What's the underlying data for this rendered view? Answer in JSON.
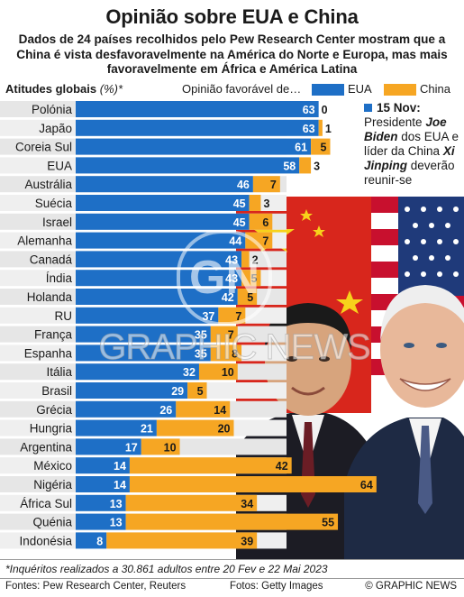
{
  "header": {
    "title": "Opinião sobre EUA e China",
    "subtitle": "Dados de 24 países recolhidos pelo Pew Research Center mostram que a China é vista desfavoravelmente na América do Norte e Europa, mas mais favoravelmente em África e América Latina"
  },
  "legend": {
    "left_label": "Atitudes globais",
    "left_unit": "(%)*",
    "mid_label": "Opinião favorável de…",
    "series_us": "EUA",
    "series_china": "China"
  },
  "annotation": {
    "date": "15 Nov:",
    "text_a": "Presidente",
    "name_a": "Joe Biden",
    "text_b": "dos EUA e líder da China",
    "name_b": "Xi Jinping",
    "text_c": "deverão reunir-se"
  },
  "watermark": {
    "logo": "GN",
    "text": "GRAPHIC NEWS"
  },
  "footer": {
    "footnote": "*Inquéritos realizados a 30.861 adultos entre 20 Fev e 22 Mai 2023",
    "sources": "Fontes: Pew Research Center, Reuters",
    "photos": "Fotos: Getty Images",
    "credit": "© GRAPHIC NEWS"
  },
  "colors": {
    "us": "#1e6fc6",
    "china": "#f6a623",
    "row_bg": "#e6e6e6"
  },
  "chart_data": {
    "type": "bar",
    "orientation": "horizontal-stacked",
    "categories": [
      "Polónia",
      "Japão",
      "Coreia Sul",
      "EUA",
      "Austrália",
      "Suécia",
      "Israel",
      "Alemanha",
      "Canadá",
      "Índia",
      "Holanda",
      "RU",
      "França",
      "Espanha",
      "Itália",
      "Brasil",
      "Grécia",
      "Hungria",
      "Argentina",
      "México",
      "Nigéria",
      "África Sul",
      "Quénia",
      "Indonésia"
    ],
    "series": [
      {
        "name": "EUA",
        "values": [
          63,
          63,
          61,
          58,
          46,
          45,
          45,
          44,
          43,
          43,
          42,
          37,
          35,
          35,
          32,
          29,
          26,
          21,
          17,
          14,
          14,
          13,
          13,
          8
        ]
      },
      {
        "name": "China",
        "values": [
          0,
          1,
          5,
          3,
          7,
          3,
          6,
          7,
          2,
          5,
          5,
          7,
          7,
          8,
          10,
          5,
          14,
          20,
          10,
          42,
          64,
          34,
          55,
          39
        ]
      }
    ],
    "xlim": [
      0,
      80
    ]
  }
}
